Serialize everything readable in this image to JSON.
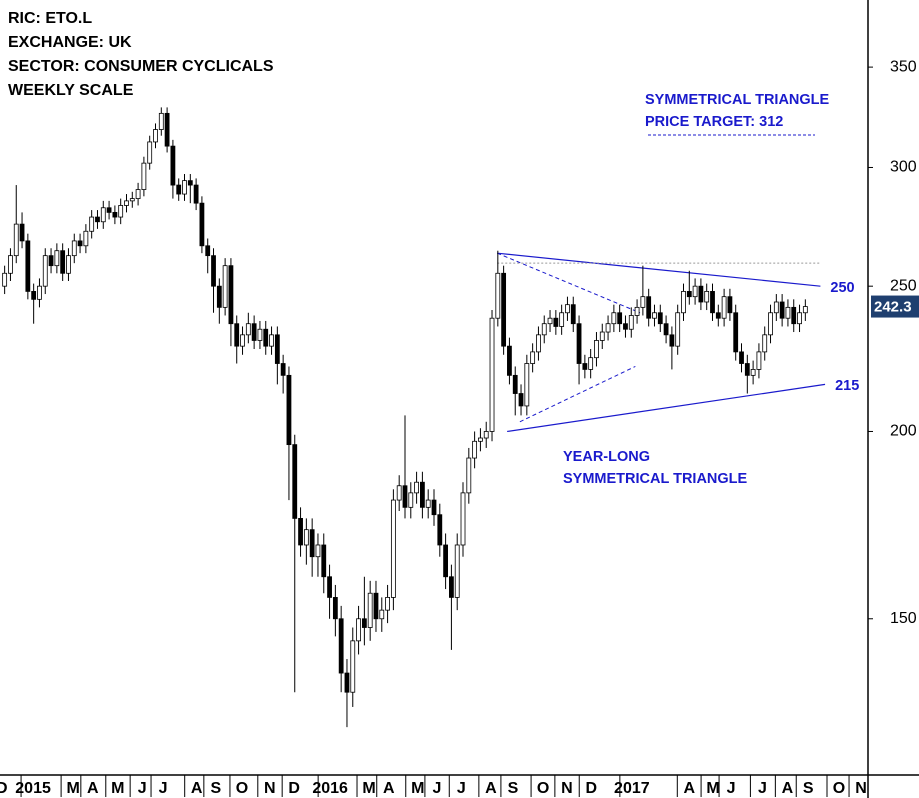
{
  "chart_data": {
    "type": "candlestick",
    "info_lines": [
      "RIC: ETO.L",
      "EXCHANGE: UK",
      "SECTOR: CONSUMER CYCLICALS",
      "WEEKLY SCALE"
    ],
    "annotations": [
      "SYMMETRICAL TRIANGLE",
      "PRICE TARGET: 312",
      "YEAR-LONG",
      "SYMMETRICAL TRIANGLE"
    ],
    "x": [
      -4,
      -3,
      -2,
      -1,
      0,
      1,
      2,
      3,
      4,
      5,
      6,
      7,
      8,
      9,
      10,
      11,
      12,
      13,
      14,
      15,
      16,
      17,
      18,
      19,
      20,
      21,
      22,
      23,
      24,
      25,
      26,
      27,
      28,
      29,
      30,
      31,
      32,
      33,
      34,
      35,
      36,
      37,
      38,
      39,
      40,
      41,
      42,
      43,
      44,
      45,
      46,
      47,
      48,
      49,
      50,
      51,
      52,
      53,
      54,
      55,
      56,
      57,
      58,
      59,
      60,
      61,
      62,
      63,
      64,
      65,
      66,
      67,
      68,
      69,
      70,
      71,
      72,
      73,
      74,
      75,
      76,
      77,
      78,
      79,
      80,
      81,
      82,
      83,
      84,
      85,
      86,
      87,
      88,
      89,
      90,
      91,
      92,
      93,
      94,
      95,
      96,
      97,
      98,
      99,
      100,
      101,
      102,
      103,
      104,
      105,
      106,
      107,
      108,
      109,
      110,
      111,
      112,
      113,
      114,
      115,
      116,
      117,
      118,
      119,
      120,
      121,
      122,
      123,
      124,
      125,
      126,
      127,
      128,
      129,
      130,
      131,
      132,
      133,
      134
    ],
    "open": [
      250,
      255,
      262,
      275,
      268,
      248,
      245,
      250,
      262,
      258,
      264,
      255,
      262,
      268,
      266,
      272,
      278,
      276,
      282,
      280,
      278,
      283,
      285,
      286,
      290,
      302,
      312,
      318,
      326,
      310,
      292,
      288,
      294,
      292,
      284,
      266,
      262,
      250,
      242,
      258,
      236,
      228,
      232,
      236,
      230,
      234,
      228,
      232,
      222,
      218,
      196,
      175,
      168,
      172,
      165,
      168,
      160,
      155,
      150,
      138,
      134,
      145,
      150,
      148,
      156,
      150,
      152,
      155,
      180,
      184,
      178,
      182,
      185,
      178,
      180,
      176,
      168,
      160,
      155,
      168,
      182,
      192,
      197,
      198,
      200,
      238,
      255,
      228,
      218,
      212,
      208,
      222,
      226,
      232,
      236,
      238,
      235,
      240,
      243,
      236,
      222,
      220,
      224,
      230,
      233,
      236,
      240,
      236,
      234,
      239,
      242,
      246,
      238,
      240,
      236,
      232,
      228,
      240,
      248,
      246,
      250,
      244,
      248,
      240,
      238,
      246,
      240,
      226,
      222,
      218,
      220,
      226,
      232,
      240,
      244,
      238,
      242,
      236,
      240
    ],
    "high": [
      258,
      265,
      292,
      280,
      271,
      251,
      253,
      265,
      265,
      267,
      267,
      265,
      271,
      271,
      275,
      281,
      281,
      285,
      285,
      283,
      286,
      288,
      289,
      293,
      305,
      315,
      321,
      329,
      329,
      313,
      295,
      297,
      297,
      295,
      287,
      269,
      265,
      253,
      261,
      261,
      239,
      235,
      240,
      239,
      237,
      237,
      235,
      235,
      225,
      221,
      199,
      178,
      175,
      175,
      171,
      171,
      163,
      158,
      153,
      141,
      148,
      153,
      160,
      159,
      159,
      155,
      158,
      183,
      187,
      205,
      185,
      188,
      188,
      183,
      183,
      179,
      171,
      163,
      171,
      185,
      195,
      200,
      201,
      203,
      241,
      264,
      258,
      231,
      221,
      215,
      225,
      229,
      235,
      239,
      241,
      241,
      243,
      246,
      246,
      239,
      225,
      227,
      233,
      236,
      239,
      243,
      243,
      239,
      242,
      245,
      258,
      249,
      243,
      243,
      239,
      235,
      243,
      251,
      256,
      253,
      253,
      251,
      251,
      243,
      249,
      249,
      243,
      229,
      225,
      223,
      229,
      235,
      243,
      247,
      247,
      245,
      245,
      243,
      245
    ],
    "low": [
      247,
      252,
      259,
      265,
      245,
      236,
      242,
      247,
      255,
      255,
      252,
      252,
      259,
      263,
      263,
      269,
      273,
      273,
      277,
      275,
      275,
      280,
      282,
      283,
      287,
      299,
      309,
      315,
      307,
      286,
      285,
      285,
      284,
      281,
      263,
      255,
      240,
      236,
      239,
      228,
      222,
      225,
      229,
      227,
      227,
      225,
      225,
      215,
      212,
      180,
      134,
      165,
      163,
      160,
      160,
      156,
      150,
      146,
      134,
      127,
      131,
      142,
      144,
      145,
      147,
      147,
      149,
      152,
      177,
      175,
      175,
      179,
      175,
      175,
      173,
      165,
      157,
      143,
      152,
      165,
      179,
      189,
      194,
      195,
      197,
      235,
      225,
      215,
      205,
      205,
      205,
      219,
      223,
      229,
      233,
      232,
      232,
      237,
      233,
      215,
      217,
      217,
      221,
      227,
      230,
      233,
      233,
      231,
      231,
      236,
      239,
      235,
      235,
      233,
      229,
      220,
      225,
      237,
      243,
      243,
      241,
      241,
      237,
      235,
      235,
      237,
      223,
      219,
      212,
      215,
      217,
      223,
      229,
      237,
      235,
      235,
      233,
      233,
      237
    ],
    "close": [
      255,
      262,
      275,
      268,
      248,
      245,
      250,
      262,
      258,
      264,
      255,
      262,
      268,
      266,
      272,
      278,
      276,
      282,
      280,
      278,
      283,
      285,
      286,
      290,
      302,
      312,
      318,
      326,
      310,
      292,
      288,
      294,
      292,
      284,
      266,
      262,
      250,
      242,
      258,
      236,
      228,
      232,
      236,
      230,
      234,
      228,
      232,
      222,
      218,
      196,
      175,
      168,
      172,
      165,
      168,
      160,
      155,
      150,
      138,
      134,
      145,
      150,
      148,
      156,
      150,
      152,
      155,
      180,
      184,
      178,
      182,
      185,
      178,
      180,
      176,
      168,
      160,
      155,
      168,
      182,
      192,
      197,
      198,
      200,
      238,
      255,
      228,
      218,
      212,
      208,
      222,
      226,
      232,
      236,
      238,
      235,
      240,
      243,
      236,
      222,
      220,
      224,
      230,
      233,
      236,
      240,
      236,
      234,
      239,
      242,
      246,
      238,
      240,
      236,
      232,
      228,
      240,
      248,
      246,
      250,
      244,
      248,
      240,
      238,
      246,
      240,
      226,
      222,
      218,
      220,
      226,
      232,
      240,
      244,
      238,
      242,
      236,
      240,
      242.3
    ],
    "up_color": "#ffffff",
    "down_color": "#000000",
    "trendlines": [
      {
        "x": [
          80.9,
          136.6
        ],
        "y": [
          263,
          250
        ],
        "color": "#1a1acc",
        "style": "solid"
      },
      {
        "x": [
          82.6,
          137.4
        ],
        "y": [
          200,
          215
        ],
        "color": "#1a1acc",
        "style": "solid"
      },
      {
        "x": [
          80.9,
          105.5
        ],
        "y": [
          263,
          240
        ],
        "color": "#1a1acc",
        "style": "dashed"
      },
      {
        "x": [
          84.8,
          104.7
        ],
        "y": [
          203,
          221
        ],
        "color": "#1a1acc",
        "style": "dashed"
      },
      {
        "x": [
          80.9,
          136.6
        ],
        "y": [
          259,
          259
        ],
        "color": "#999999",
        "style": "dotted"
      }
    ],
    "log_scale": true,
    "ylim": [
      118,
      388
    ],
    "yticks": [
      150,
      200,
      250,
      300,
      350
    ],
    "xlim": [
      -4.8,
      144.8
    ],
    "xticks": [
      {
        "value": -4.5,
        "label": "D"
      },
      {
        "value": 0.9,
        "label": "2015"
      },
      {
        "value": 7.8,
        "label": "M"
      },
      {
        "value": 11.2,
        "label": "A"
      },
      {
        "value": 15.5,
        "label": "M"
      },
      {
        "value": 19.7,
        "label": "J"
      },
      {
        "value": 23.3,
        "label": "J"
      },
      {
        "value": 29.1,
        "label": "A"
      },
      {
        "value": 32.4,
        "label": "S"
      },
      {
        "value": 36.9,
        "label": "O"
      },
      {
        "value": 41.7,
        "label": "N"
      },
      {
        "value": 45.9,
        "label": "D"
      },
      {
        "value": 52.1,
        "label": "2016"
      },
      {
        "value": 58.8,
        "label": "M"
      },
      {
        "value": 62.2,
        "label": "A"
      },
      {
        "value": 67.2,
        "label": "M"
      },
      {
        "value": 70.5,
        "label": "J"
      },
      {
        "value": 74.7,
        "label": "J"
      },
      {
        "value": 79.8,
        "label": "A"
      },
      {
        "value": 83.6,
        "label": "S"
      },
      {
        "value": 88.8,
        "label": "O"
      },
      {
        "value": 92.9,
        "label": "N"
      },
      {
        "value": 97.1,
        "label": "D"
      },
      {
        "value": 104.1,
        "label": "2017"
      },
      {
        "value": 114,
        "label": "A"
      },
      {
        "value": 118.1,
        "label": "M"
      },
      {
        "value": 121.2,
        "label": "J"
      },
      {
        "value": 126.6,
        "label": "J"
      },
      {
        "value": 130.9,
        "label": "A"
      },
      {
        "value": 134.5,
        "label": "S"
      },
      {
        "value": 139.8,
        "label": "O"
      },
      {
        "value": 143.6,
        "label": "N"
      }
    ],
    "last_price_color": "#1f3f6f"
  }
}
